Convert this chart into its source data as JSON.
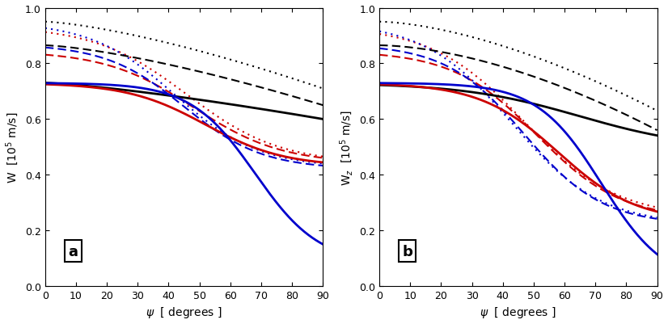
{
  "colors": {
    "black": "#000000",
    "red": "#cc0000",
    "blue": "#0000cc",
    "pink": "#e06080",
    "light_blue": "#6688cc",
    "purple": "#8800aa"
  },
  "panel_a_label": "a",
  "panel_b_label": "b",
  "xlim": [
    0,
    90
  ],
  "ylim": [
    0.0,
    1.0
  ],
  "xticks": [
    0,
    10,
    20,
    30,
    40,
    50,
    60,
    70,
    80,
    90
  ],
  "yticks": [
    0.0,
    0.2,
    0.4,
    0.6,
    0.8,
    1.0
  ]
}
